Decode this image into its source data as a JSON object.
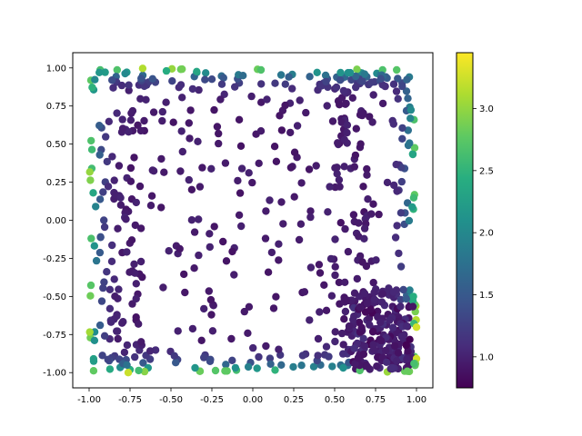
{
  "chart_data": {
    "type": "scatter",
    "title": "",
    "xlabel": "",
    "ylabel": "",
    "xlim": [
      -1.1,
      1.1
    ],
    "ylim": [
      -1.1,
      1.1
    ],
    "x_ticks": [
      "-1.00",
      "-0.75",
      "-0.50",
      "-0.25",
      "0.00",
      "0.25",
      "0.50",
      "0.75",
      "1.00"
    ],
    "y_ticks": [
      "-1.00",
      "-0.75",
      "-0.50",
      "-0.25",
      "0.00",
      "0.25",
      "0.50",
      "0.75",
      "1.00"
    ],
    "grid": false,
    "colormap": "viridis",
    "colorbar": {
      "range": [
        0.75,
        3.45
      ],
      "ticks": [
        "1.0",
        "1.5",
        "2.0",
        "2.5",
        "3.0"
      ]
    },
    "point_count": 800,
    "description_of_distribution": "",
    "points": []
  }
}
